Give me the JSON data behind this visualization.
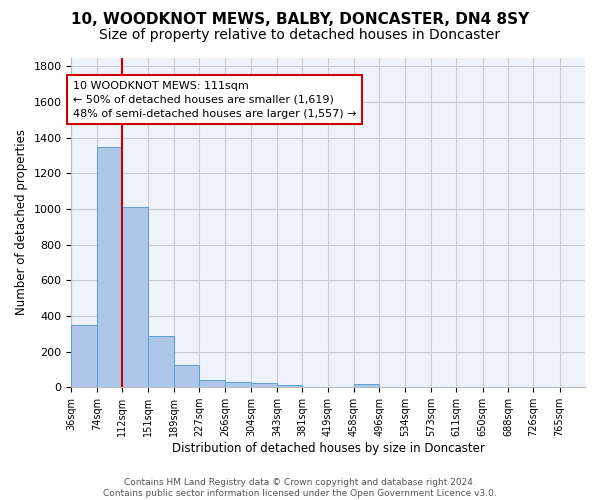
{
  "title": "10, WOODKNOT MEWS, BALBY, DONCASTER, DN4 8SY",
  "subtitle": "Size of property relative to detached houses in Doncaster",
  "xlabel": "Distribution of detached houses by size in Doncaster",
  "ylabel": "Number of detached properties",
  "annotation_line1": "10 WOODKNOT MEWS: 111sqm",
  "annotation_line2": "← 50% of detached houses are smaller (1,619)",
  "annotation_line3": "48% of semi-detached houses are larger (1,557) →",
  "footer_line1": "Contains HM Land Registry data © Crown copyright and database right 2024.",
  "footer_line2": "Contains public sector information licensed under the Open Government Licence v3.0.",
  "bar_edges": [
    36,
    74,
    112,
    151,
    189,
    227,
    266,
    304,
    343,
    381,
    419,
    458,
    496,
    534,
    573,
    611,
    650,
    688,
    726,
    765,
    803
  ],
  "bar_heights": [
    350,
    1350,
    1010,
    285,
    125,
    38,
    32,
    22,
    15,
    0,
    0,
    20,
    0,
    0,
    0,
    0,
    0,
    0,
    0,
    0
  ],
  "bar_color": "#aec6e8",
  "bar_edgecolor": "#5a9fd4",
  "vline_x": 112,
  "vline_color": "#cc0000",
  "ylim": [
    0,
    1850
  ],
  "yticks": [
    0,
    200,
    400,
    600,
    800,
    1000,
    1200,
    1400,
    1600,
    1800
  ],
  "grid_color": "#cccccc",
  "bg_color": "#eef2fa",
  "annotation_box_color": "#cc0000",
  "title_fontsize": 11,
  "subtitle_fontsize": 10
}
